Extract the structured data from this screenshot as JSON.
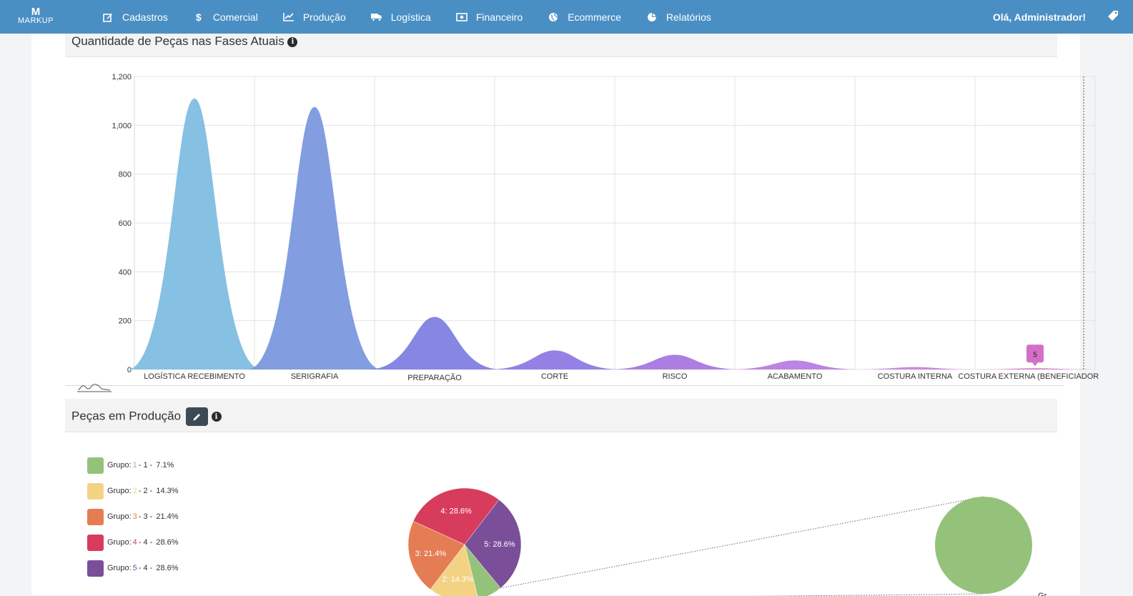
{
  "nav": {
    "brand": "MARKUP",
    "brand_mark": "M",
    "items": [
      {
        "label": "Cadastros",
        "icon": "edit-icon"
      },
      {
        "label": "Comercial",
        "icon": "dollar-icon"
      },
      {
        "label": "Produção",
        "icon": "line-chart-icon"
      },
      {
        "label": "Logística",
        "icon": "truck-icon"
      },
      {
        "label": "Financeiro",
        "icon": "money-icon"
      },
      {
        "label": "Ecommerce",
        "icon": "globe-icon"
      },
      {
        "label": "Relatórios",
        "icon": "pie-chart-icon"
      }
    ],
    "greeting": "Olá, Administrador!",
    "right_icon": "tag-icon"
  },
  "panels": {
    "phases_title": "Quantidade de Peças nas Fases Atuais",
    "production_title": "Peças em Produção"
  },
  "colors": {
    "nav_bg": "#4a8fc4",
    "series": [
      "#7fbde0",
      "#7b98de",
      "#7f80e2",
      "#8f7ae4",
      "#a877e2",
      "#b87de3",
      "#c684d6",
      "#d27ccb"
    ],
    "groups": [
      "#94c27a",
      "#f4d284",
      "#e57d54",
      "#d83c5c",
      "#7b4e99"
    ]
  },
  "chart_data": [
    {
      "type": "area",
      "title": "Quantidade de Peças nas Fases Atuais",
      "categories": [
        "LOGÍSTICA RECEBIMENTO",
        "SERIGRAFIA",
        "PREPARAÇÃO",
        "CORTE",
        "RISCO",
        "ACABAMENTO",
        "COSTURA INTERNA",
        "COSTURA EXTERNA (BENEFICIADORES)"
      ],
      "values": [
        1110,
        1075,
        215,
        78,
        60,
        37,
        10,
        5
      ],
      "y_ticks": [
        "0",
        "200",
        "400",
        "600",
        "800",
        "1,000",
        "1,200"
      ],
      "ylim": [
        0,
        1200
      ],
      "grid": true,
      "tooltip": {
        "category": "COSTURA EXTERNA (BENEFICIADORES)",
        "value": "5"
      }
    },
    {
      "type": "pie",
      "title": "Peças em Produção",
      "legend_prefix": "Grupo:",
      "slices": [
        {
          "group": "1",
          "label": "1",
          "percent": 7.1,
          "percent_label": "7.1%",
          "slice_label": "1: 7.1%"
        },
        {
          "group": "2",
          "label": "2",
          "percent": 14.3,
          "percent_label": "14.3%",
          "slice_label": "2: 14.3%"
        },
        {
          "group": "3",
          "label": "3",
          "percent": 21.4,
          "percent_label": "21.4%",
          "slice_label": "3: 21.4%"
        },
        {
          "group": "4",
          "label": "4",
          "percent": 28.6,
          "percent_label": "28.6%",
          "slice_label": "4: 28.6%"
        },
        {
          "group": "5",
          "label": "4",
          "percent": 28.6,
          "percent_label": "28.6%",
          "slice_label": "5: 28.6%"
        }
      ],
      "detail_label": "Gr"
    }
  ]
}
